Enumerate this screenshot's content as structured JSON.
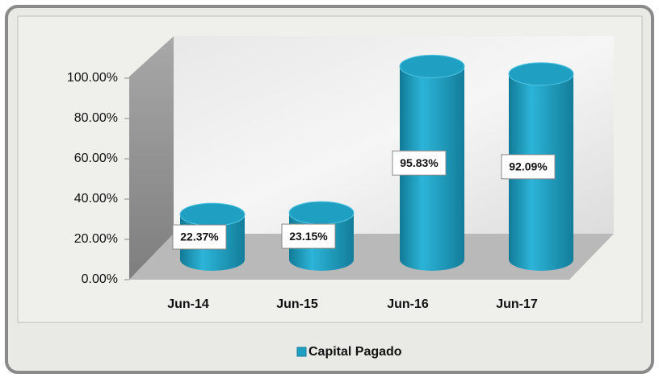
{
  "chart_data": {
    "type": "bar3d",
    "categories": [
      "Jun-14",
      "Jun-15",
      "Jun-16",
      "Jun-17"
    ],
    "series": [
      {
        "name": "Capital Pagado",
        "color": "#1f9fc2",
        "values": [
          22.37,
          23.15,
          95.83,
          92.09
        ],
        "value_labels": [
          "22.37%",
          "23.15%",
          "95.83%",
          "92.09%"
        ]
      }
    ],
    "ylim": [
      0,
      100
    ],
    "yticks": [
      {
        "value": 0,
        "label": "0.00%"
      },
      {
        "value": 20,
        "label": "20.00%"
      },
      {
        "value": 40,
        "label": "40.00%"
      },
      {
        "value": 60,
        "label": "60.00%"
      },
      {
        "value": 80,
        "label": "80.00%"
      },
      {
        "value": 100,
        "label": "100.00%"
      }
    ],
    "legend": "bottom"
  }
}
